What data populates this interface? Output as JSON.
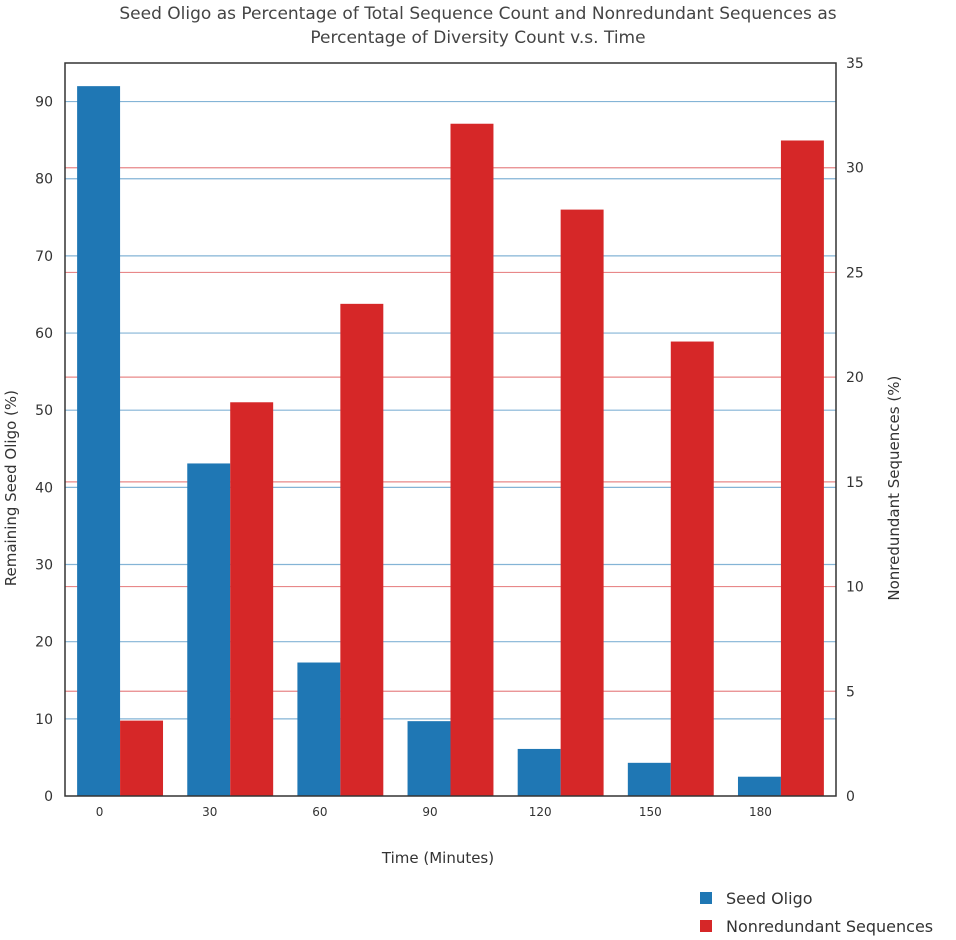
{
  "chart_data": {
    "type": "bar",
    "title": [
      "Seed Oligo as Percentage of Total Sequence Count and Nonredundant Sequences as",
      "Percentage of Diversity Count v.s. Time"
    ],
    "xlabel": "Time (Minutes)",
    "ylabel_left": "Remaining Seed Oligo (%)",
    "ylabel_right": "Nonredundant Sequences (%)",
    "categories": [
      "0",
      "30",
      "60",
      "90",
      "120",
      "150",
      "180"
    ],
    "series": [
      {
        "name": "Seed Oligo",
        "axis": "left",
        "color": "#1f77b4",
        "values": [
          92,
          43.1,
          17.3,
          9.7,
          6.1,
          4.3,
          2.5
        ]
      },
      {
        "name": "Nonredundant Sequences",
        "axis": "right",
        "color": "#d62728",
        "values": [
          3.6,
          18.8,
          23.5,
          32.1,
          28,
          21.7,
          31.3
        ]
      }
    ],
    "ylim_left": [
      0,
      95
    ],
    "ylim_right": [
      0,
      35
    ],
    "yticks_left": [
      0,
      10,
      20,
      30,
      40,
      50,
      60,
      70,
      80,
      90
    ],
    "yticks_right": [
      0,
      5,
      10,
      15,
      20,
      25,
      30,
      35
    ],
    "grid": true,
    "legend_position": "bottom-right"
  }
}
